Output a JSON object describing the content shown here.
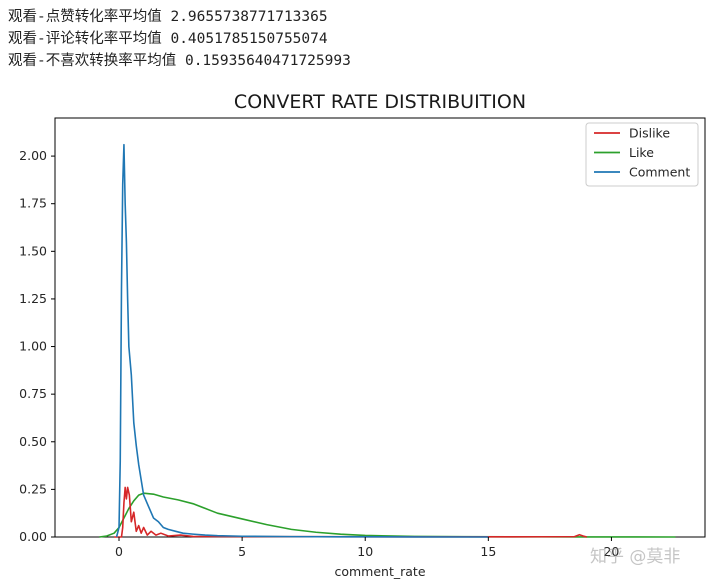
{
  "output": {
    "lines": [
      "观看-点赞转化率平均值 2.9655738771713365",
      "观看-评论转化率平均值 0.4051785150755074",
      "观看-不喜欢转换率平均值 0.15935640471725993"
    ]
  },
  "watermark": "知乎 @莫非",
  "chart_data": {
    "type": "line",
    "title": "CONVERT RATE DISTRIBUITION",
    "xlabel": "comment_rate",
    "ylabel": "",
    "xlim": [
      -2.6,
      23.8
    ],
    "ylim": [
      0,
      2.2
    ],
    "x_ticks": [
      0,
      5,
      10,
      15,
      20
    ],
    "x_tick_labels": [
      "0",
      "5",
      "10",
      "15",
      "20"
    ],
    "y_ticks": [
      0,
      0.25,
      0.5,
      0.75,
      1.0,
      1.25,
      1.5,
      1.75,
      2.0
    ],
    "y_tick_labels": [
      "0.00",
      "0.25",
      "0.50",
      "0.75",
      "1.00",
      "1.25",
      "1.50",
      "1.75",
      "2.00"
    ],
    "grid": false,
    "legend_position": "top-right",
    "series": [
      {
        "name": "Dislike",
        "color": "#d62728",
        "points": [
          [
            -0.2,
            0
          ],
          [
            0.1,
            0.0
          ],
          [
            0.15,
            0.05
          ],
          [
            0.2,
            0.18
          ],
          [
            0.25,
            0.26
          ],
          [
            0.3,
            0.2
          ],
          [
            0.35,
            0.26
          ],
          [
            0.42,
            0.22
          ],
          [
            0.5,
            0.08
          ],
          [
            0.6,
            0.13
          ],
          [
            0.7,
            0.03
          ],
          [
            0.8,
            0.06
          ],
          [
            0.9,
            0.02
          ],
          [
            1.0,
            0.05
          ],
          [
            1.15,
            0.01
          ],
          [
            1.3,
            0.03
          ],
          [
            1.5,
            0.01
          ],
          [
            1.7,
            0.02
          ],
          [
            2.0,
            0.005
          ],
          [
            2.5,
            0.01
          ],
          [
            3.0,
            0.003
          ],
          [
            5.0,
            0.002
          ],
          [
            8.0,
            0.0015
          ],
          [
            12.0,
            0.001
          ],
          [
            16.0,
            0.001
          ],
          [
            18.5,
            0.002
          ],
          [
            18.7,
            0.012
          ],
          [
            18.85,
            0.005
          ],
          [
            19.0,
            0.0
          ]
        ]
      },
      {
        "name": "Like",
        "color": "#2ca02c",
        "points": [
          [
            -0.8,
            0.0
          ],
          [
            -0.5,
            0.005
          ],
          [
            -0.2,
            0.02
          ],
          [
            0.0,
            0.05
          ],
          [
            0.2,
            0.1
          ],
          [
            0.4,
            0.15
          ],
          [
            0.6,
            0.19
          ],
          [
            0.8,
            0.22
          ],
          [
            1.0,
            0.23
          ],
          [
            1.4,
            0.225
          ],
          [
            1.8,
            0.21
          ],
          [
            2.4,
            0.195
          ],
          [
            3.0,
            0.175
          ],
          [
            3.5,
            0.15
          ],
          [
            4.0,
            0.125
          ],
          [
            5.0,
            0.095
          ],
          [
            6.0,
            0.065
          ],
          [
            7.0,
            0.04
          ],
          [
            8.0,
            0.025
          ],
          [
            9.0,
            0.015
          ],
          [
            10.0,
            0.008
          ],
          [
            12.0,
            0.003
          ],
          [
            14.0,
            0.0015
          ],
          [
            17.0,
            0.001
          ],
          [
            19.0,
            0.0005
          ],
          [
            22.6,
            0.0
          ]
        ]
      },
      {
        "name": "Comment",
        "color": "#1f77b4",
        "points": [
          [
            -0.1,
            0.0
          ],
          [
            0.0,
            0.05
          ],
          [
            0.05,
            0.4
          ],
          [
            0.1,
            1.3
          ],
          [
            0.15,
            1.85
          ],
          [
            0.2,
            2.06
          ],
          [
            0.25,
            1.75
          ],
          [
            0.3,
            1.55
          ],
          [
            0.35,
            1.25
          ],
          [
            0.4,
            1.0
          ],
          [
            0.5,
            0.85
          ],
          [
            0.6,
            0.6
          ],
          [
            0.7,
            0.48
          ],
          [
            0.8,
            0.38
          ],
          [
            0.9,
            0.3
          ],
          [
            1.0,
            0.22
          ],
          [
            1.2,
            0.16
          ],
          [
            1.4,
            0.1
          ],
          [
            1.6,
            0.08
          ],
          [
            1.8,
            0.05
          ],
          [
            2.0,
            0.04
          ],
          [
            2.3,
            0.03
          ],
          [
            2.6,
            0.02
          ],
          [
            3.0,
            0.015
          ],
          [
            3.5,
            0.01
          ],
          [
            4.0,
            0.007
          ],
          [
            5.0,
            0.004
          ],
          [
            7.0,
            0.002
          ],
          [
            9.0,
            0.001
          ],
          [
            12.0,
            0.0005
          ],
          [
            15.0,
            0.0
          ]
        ]
      }
    ]
  }
}
